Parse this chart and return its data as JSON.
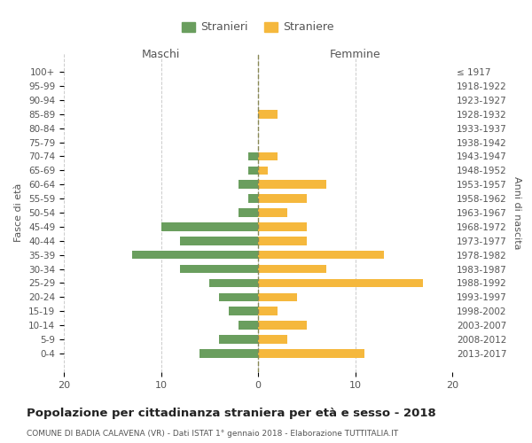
{
  "age_groups": [
    "100+",
    "95-99",
    "90-94",
    "85-89",
    "80-84",
    "75-79",
    "70-74",
    "65-69",
    "60-64",
    "55-59",
    "50-54",
    "45-49",
    "40-44",
    "35-39",
    "30-34",
    "25-29",
    "20-24",
    "15-19",
    "10-14",
    "5-9",
    "0-4"
  ],
  "birth_years": [
    "≤ 1917",
    "1918-1922",
    "1923-1927",
    "1928-1932",
    "1933-1937",
    "1938-1942",
    "1943-1947",
    "1948-1952",
    "1953-1957",
    "1958-1962",
    "1963-1967",
    "1968-1972",
    "1973-1977",
    "1978-1982",
    "1983-1987",
    "1988-1992",
    "1993-1997",
    "1998-2002",
    "2003-2007",
    "2008-2012",
    "2013-2017"
  ],
  "maschi": [
    0,
    0,
    0,
    0,
    0,
    0,
    1,
    1,
    2,
    1,
    2,
    10,
    8,
    13,
    8,
    5,
    4,
    3,
    2,
    4,
    6
  ],
  "femmine": [
    0,
    0,
    0,
    2,
    0,
    0,
    2,
    1,
    7,
    5,
    3,
    5,
    5,
    13,
    7,
    17,
    4,
    2,
    5,
    3,
    11
  ],
  "color_maschi": "#6a9e5e",
  "color_femmine": "#f5b83d",
  "title": "Popolazione per cittadinanza straniera per età e sesso - 2018",
  "subtitle": "COMUNE DI BADIA CALAVENA (VR) - Dati ISTAT 1° gennaio 2018 - Elaborazione TUTTITALIA.IT",
  "xlabel_left": "Maschi",
  "xlabel_right": "Femmine",
  "ylabel_left": "Fasce di età",
  "ylabel_right": "Anni di nascita",
  "legend_maschi": "Stranieri",
  "legend_femmine": "Straniere",
  "xlim": 20,
  "background_color": "#ffffff",
  "grid_color": "#cccccc"
}
